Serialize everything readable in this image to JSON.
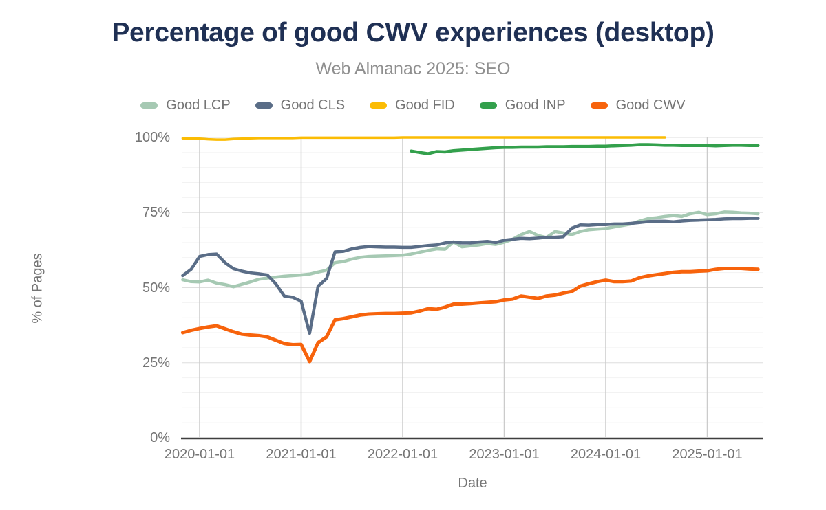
{
  "title": "Percentage of good CWV experiences (desktop)",
  "subtitle": "Web Almanac 2025: SEO",
  "axes": {
    "x_label": "Date",
    "y_label": "% of Pages",
    "y_ticks": [
      {
        "label": "0%",
        "value": 0
      },
      {
        "label": "25%",
        "value": 25
      },
      {
        "label": "50%",
        "value": 50
      },
      {
        "label": "75%",
        "value": 75
      },
      {
        "label": "100%",
        "value": 100
      }
    ],
    "x_ticks": [
      "2020-01-01",
      "2021-01-01",
      "2022-01-01",
      "2023-01-01",
      "2024-01-01",
      "2025-01-01"
    ]
  },
  "colors": {
    "title": "#1f3054",
    "subtitle": "#8f8f8f",
    "axis_text": "#757575",
    "grid_minor": "#f2f2f2",
    "grid_major": "#dedede",
    "grid_vertical": "#cbcbcb",
    "axis_line": "#3f3f3f"
  },
  "chart_data": {
    "type": "line",
    "title": "Percentage of good CWV experiences (desktop)",
    "subtitle": "Web Almanac 2025: SEO",
    "xlabel": "Date",
    "ylabel": "% of Pages",
    "ylim": [
      0,
      100
    ],
    "y_tick_step_major": 25,
    "y_tick_step_minor": 5,
    "grid": true,
    "legend_position": "top",
    "x": [
      "2019-11-01",
      "2019-12-01",
      "2020-01-01",
      "2020-02-01",
      "2020-03-01",
      "2020-04-01",
      "2020-05-01",
      "2020-06-01",
      "2020-07-01",
      "2020-08-01",
      "2020-09-01",
      "2020-10-01",
      "2020-11-01",
      "2020-12-01",
      "2021-01-01",
      "2021-02-01",
      "2021-03-01",
      "2021-04-01",
      "2021-05-01",
      "2021-06-01",
      "2021-07-01",
      "2021-08-01",
      "2021-09-01",
      "2021-10-01",
      "2021-11-01",
      "2021-12-01",
      "2022-01-01",
      "2022-02-01",
      "2022-03-01",
      "2022-04-01",
      "2022-05-01",
      "2022-06-01",
      "2022-07-01",
      "2022-08-01",
      "2022-09-01",
      "2022-10-01",
      "2022-11-01",
      "2022-12-01",
      "2023-01-01",
      "2023-02-01",
      "2023-03-01",
      "2023-04-01",
      "2023-05-01",
      "2023-06-01",
      "2023-07-01",
      "2023-08-01",
      "2023-09-01",
      "2023-10-01",
      "2023-11-01",
      "2023-12-01",
      "2024-01-01",
      "2024-02-01",
      "2024-03-01",
      "2024-04-01",
      "2024-05-01",
      "2024-06-01",
      "2024-07-01",
      "2024-08-01",
      "2024-09-01",
      "2024-10-01",
      "2024-11-01",
      "2024-12-01",
      "2025-01-01",
      "2025-02-01",
      "2025-03-01",
      "2025-04-01",
      "2025-05-01",
      "2025-06-01",
      "2025-07-01"
    ],
    "series": [
      {
        "name": "Good LCP",
        "color": "#a6c9b3",
        "stroke_width": 4.5,
        "values": [
          52.6,
          52.0,
          51.9,
          52.5,
          51.5,
          51.0,
          50.3,
          51.1,
          51.9,
          52.8,
          53.2,
          53.5,
          53.8,
          54.0,
          54.2,
          54.5,
          55.2,
          55.8,
          58.3,
          58.7,
          59.5,
          60.1,
          60.4,
          60.5,
          60.6,
          60.7,
          60.8,
          61.2,
          61.8,
          62.4,
          62.9,
          62.8,
          65.2,
          63.6,
          63.9,
          64.2,
          64.7,
          64.4,
          65.1,
          66.1,
          67.7,
          68.7,
          67.4,
          66.7,
          68.7,
          68.2,
          67.7,
          68.7,
          69.3,
          69.5,
          69.7,
          70.2,
          70.7,
          71.2,
          72.2,
          73.0,
          73.3,
          73.7,
          74.0,
          73.7,
          74.6,
          75.1,
          74.3,
          74.6,
          75.2,
          75.1,
          74.9,
          74.8,
          74.6
        ]
      },
      {
        "name": "Good CLS",
        "color": "#5a6d87",
        "stroke_width": 4.5,
        "values": [
          54.0,
          56.1,
          60.4,
          61.0,
          61.2,
          58.3,
          56.3,
          55.5,
          54.9,
          54.6,
          54.2,
          51.3,
          47.2,
          46.8,
          45.5,
          34.8,
          50.5,
          53.0,
          61.9,
          62.1,
          62.9,
          63.4,
          63.7,
          63.6,
          63.5,
          63.5,
          63.4,
          63.4,
          63.7,
          64.0,
          64.2,
          64.9,
          65.2,
          64.9,
          64.9,
          65.2,
          65.4,
          65.0,
          65.8,
          66.1,
          66.4,
          66.3,
          66.5,
          66.8,
          66.8,
          67.0,
          69.8,
          70.9,
          70.8,
          71.0,
          71.0,
          71.2,
          71.2,
          71.4,
          71.7,
          72.0,
          72.1,
          72.1,
          71.9,
          72.2,
          72.4,
          72.5,
          72.6,
          72.7,
          72.9,
          73.0,
          73.0,
          73.1,
          73.1
        ]
      },
      {
        "name": "Good FID",
        "color": "#fbbc04",
        "stroke_width": 3.5,
        "values": [
          99.7,
          99.7,
          99.6,
          99.4,
          99.3,
          99.3,
          99.5,
          99.6,
          99.7,
          99.8,
          99.8,
          99.8,
          99.8,
          99.8,
          99.9,
          99.9,
          99.9,
          99.9,
          99.9,
          99.9,
          99.9,
          99.9,
          99.9,
          99.9,
          99.9,
          99.9,
          100,
          100,
          100,
          100,
          100,
          100,
          100,
          100,
          100,
          100,
          100,
          100,
          100,
          100,
          100,
          100,
          100,
          100,
          100,
          100,
          100,
          100,
          100,
          100,
          100,
          100,
          100,
          100,
          100,
          100,
          100,
          100,
          null,
          null,
          null,
          null,
          null,
          null,
          null,
          null,
          null,
          null,
          null
        ]
      },
      {
        "name": "Good INP",
        "color": "#33a04c",
        "stroke_width": 4.5,
        "values": [
          null,
          null,
          null,
          null,
          null,
          null,
          null,
          null,
          null,
          null,
          null,
          null,
          null,
          null,
          null,
          null,
          null,
          null,
          null,
          null,
          null,
          null,
          null,
          null,
          null,
          null,
          null,
          95.5,
          95.0,
          94.6,
          95.3,
          95.2,
          95.6,
          95.8,
          96.0,
          96.2,
          96.4,
          96.6,
          96.7,
          96.7,
          96.8,
          96.8,
          96.8,
          96.9,
          96.9,
          96.9,
          97.0,
          97.0,
          97.0,
          97.1,
          97.1,
          97.2,
          97.3,
          97.4,
          97.6,
          97.6,
          97.5,
          97.4,
          97.4,
          97.3,
          97.3,
          97.3,
          97.3,
          97.2,
          97.3,
          97.4,
          97.4,
          97.3,
          97.3
        ]
      },
      {
        "name": "Good CWV",
        "color": "#f7630c",
        "stroke_width": 5,
        "values": [
          35.0,
          35.8,
          36.4,
          36.9,
          37.3,
          36.3,
          35.3,
          34.5,
          34.2,
          34.0,
          33.6,
          32.5,
          31.4,
          31.0,
          31.1,
          25.4,
          31.7,
          33.6,
          39.3,
          39.7,
          40.3,
          40.9,
          41.2,
          41.3,
          41.4,
          41.4,
          41.5,
          41.6,
          42.2,
          43.0,
          42.8,
          43.5,
          44.5,
          44.5,
          44.7,
          44.9,
          45.1,
          45.3,
          45.9,
          46.2,
          47.2,
          46.8,
          46.4,
          47.2,
          47.5,
          48.2,
          48.7,
          50.5,
          51.3,
          52.0,
          52.5,
          52.0,
          52.0,
          52.2,
          53.3,
          53.9,
          54.3,
          54.7,
          55.1,
          55.3,
          55.3,
          55.5,
          55.6,
          56.1,
          56.4,
          56.4,
          56.4,
          56.2,
          56.1
        ]
      }
    ]
  }
}
